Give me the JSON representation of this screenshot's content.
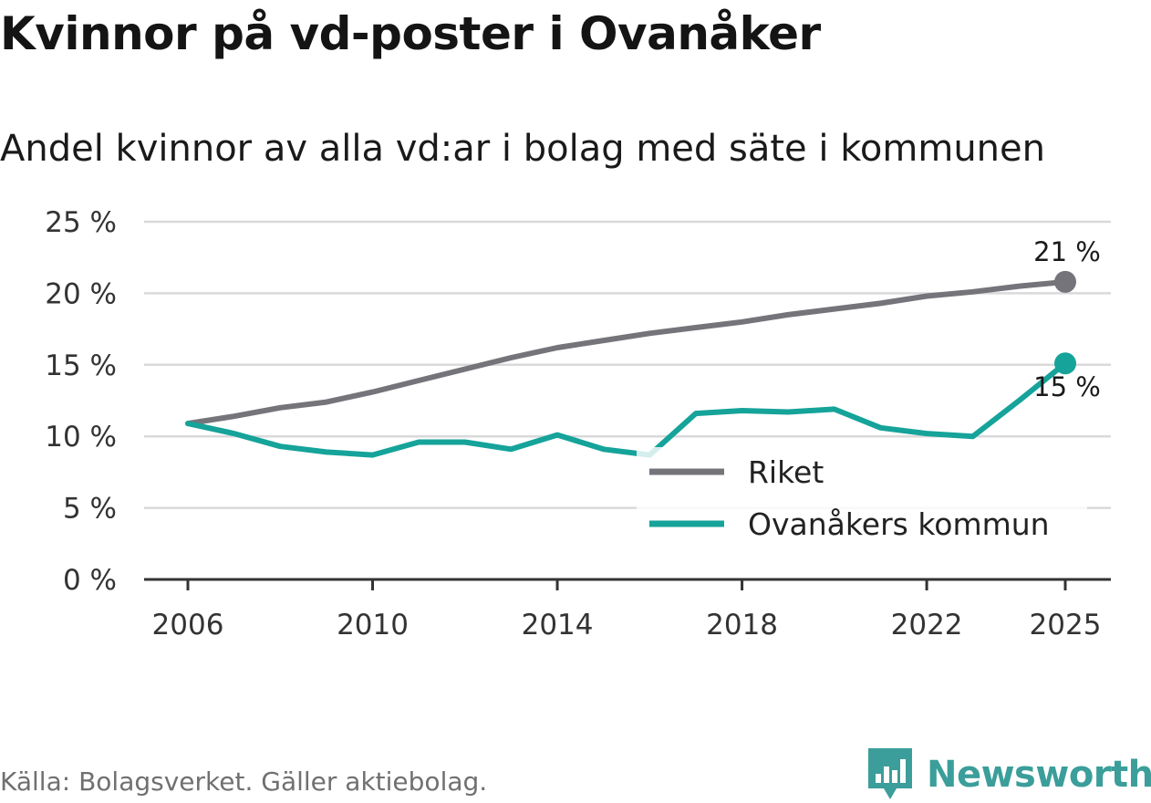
{
  "title": "Kvinnor på vd-poster i Ovanåker",
  "subtitle": "Andel kvinnor av alla vd:ar i bolag med säte i kommunen",
  "source": "Källa: Bolagsverket. Gäller aktiebolag.",
  "brand": {
    "name": "Newsworthy",
    "icon": "bar-chart-speech-bubble-icon"
  },
  "colors": {
    "riket": "#75747b",
    "ovanaker": "#15a39a",
    "grid": "#d9d9d9",
    "axis": "#333333",
    "brand": "#3b9e9a"
  },
  "chart_data": {
    "type": "line",
    "x": [
      2006,
      2007,
      2008,
      2009,
      2010,
      2011,
      2012,
      2013,
      2014,
      2015,
      2016,
      2017,
      2018,
      2019,
      2020,
      2021,
      2022,
      2023,
      2024,
      2025
    ],
    "x_ticks": [
      "2006",
      "2010",
      "2014",
      "2018",
      "2022",
      "2025"
    ],
    "x_tick_values": [
      2006,
      2010,
      2014,
      2018,
      2022,
      2025
    ],
    "y_ticks": [
      "0 %",
      "5 %",
      "10 %",
      "15 %",
      "20 %",
      "25 %"
    ],
    "y_tick_values": [
      0,
      5,
      10,
      15,
      20,
      25
    ],
    "ylim": [
      0,
      25
    ],
    "xlim": [
      2006,
      2025
    ],
    "series": [
      {
        "name": "Riket",
        "color": "#75747b",
        "values": [
          10.9,
          11.4,
          12.0,
          12.4,
          13.1,
          13.9,
          14.7,
          15.5,
          16.2,
          16.7,
          17.2,
          17.6,
          18.0,
          18.5,
          18.9,
          19.3,
          19.8,
          20.1,
          20.5,
          20.8
        ],
        "end_label": "21 %"
      },
      {
        "name": "Ovanåkers kommun",
        "color": "#15a39a",
        "values": [
          10.9,
          10.2,
          9.3,
          8.9,
          8.7,
          9.6,
          9.6,
          9.1,
          10.1,
          9.1,
          8.7,
          11.6,
          11.8,
          11.7,
          11.9,
          10.6,
          10.2,
          10.0,
          12.5,
          15.1
        ],
        "end_label": "15 %"
      }
    ],
    "legend": [
      "Riket",
      "Ovanåkers kommun"
    ],
    "legend_position": "bottom-right",
    "grid": true
  }
}
